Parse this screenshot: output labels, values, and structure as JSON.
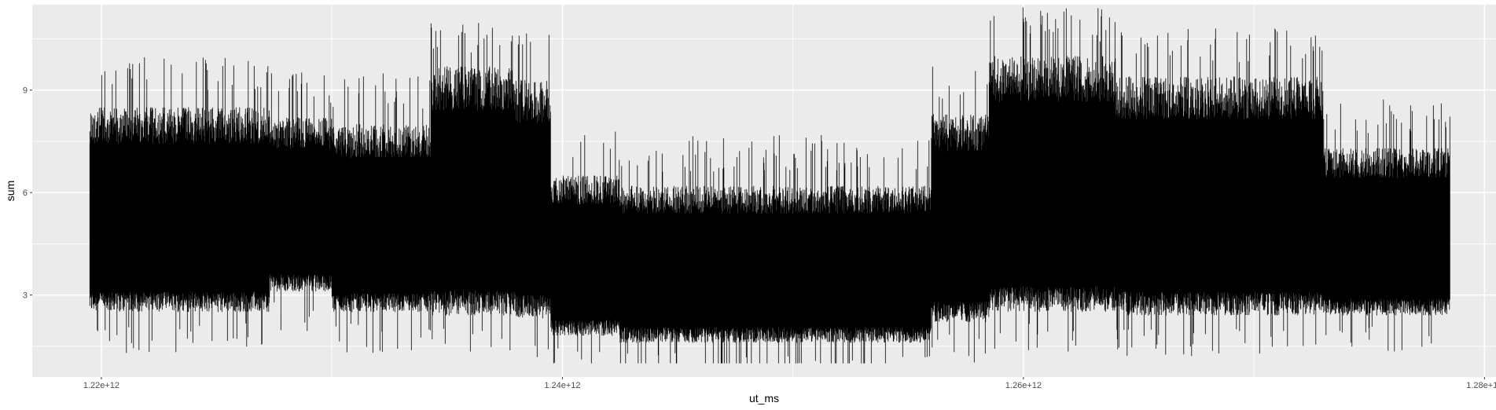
{
  "chart_data": {
    "type": "line",
    "title": "",
    "xlabel": "ut_ms",
    "ylabel": "sum",
    "xlim": [
      1217000000000.0,
      1280500000000.0
    ],
    "ylim": [
      0.6,
      11.5
    ],
    "x_ticks": [
      {
        "value": 1220000000000.0,
        "label": "1.22e+12"
      },
      {
        "value": 1240000000000.0,
        "label": "1.24e+12"
      },
      {
        "value": 1260000000000.0,
        "label": "1.26e+12"
      },
      {
        "value": 1280000000000.0,
        "label": "1.28e+12"
      }
    ],
    "y_ticks": [
      {
        "value": 3,
        "label": "3"
      },
      {
        "value": 6,
        "label": "6"
      },
      {
        "value": 9,
        "label": "9"
      }
    ],
    "grid": true,
    "legend": "none",
    "x_range": [
      1219500000000.0,
      1278500000000.0
    ],
    "segments": [
      {
        "x_start": 1219500000000.0,
        "x_end": 1227300000000.0,
        "low": 2.5,
        "high": 8.5
      },
      {
        "x_start": 1227300000000.0,
        "x_end": 1230000000000.0,
        "low": 3.1,
        "high": 8.2
      },
      {
        "x_start": 1230000000000.0,
        "x_end": 1234300000000.0,
        "low": 2.5,
        "high": 8.0
      },
      {
        "x_start": 1234300000000.0,
        "x_end": 1238000000000.0,
        "low": 2.4,
        "high": 9.7
      },
      {
        "x_start": 1238000000000.0,
        "x_end": 1239500000000.0,
        "low": 2.3,
        "high": 9.3
      },
      {
        "x_start": 1239500000000.0,
        "x_end": 1242500000000.0,
        "low": 1.8,
        "high": 6.5
      },
      {
        "x_start": 1242500000000.0,
        "x_end": 1256000000000.0,
        "low": 1.6,
        "high": 6.2
      },
      {
        "x_start": 1256000000000.0,
        "x_end": 1258500000000.0,
        "low": 2.2,
        "high": 8.3
      },
      {
        "x_start": 1258500000000.0,
        "x_end": 1264000000000.0,
        "low": 2.5,
        "high": 10.0
      },
      {
        "x_start": 1264000000000.0,
        "x_end": 1273000000000.0,
        "low": 2.4,
        "high": 9.4
      },
      {
        "x_start": 1273000000000.0,
        "x_end": 1278500000000.0,
        "low": 2.4,
        "high": 7.3
      }
    ],
    "colors": {
      "panel_bg": "#ebebeb",
      "grid_major": "#ffffff",
      "grid_minor": "#f5f5f5",
      "line": "#000000",
      "tick_text": "#4d4d4d",
      "tick_mark": "#333333",
      "axis_title": "#000000"
    }
  }
}
